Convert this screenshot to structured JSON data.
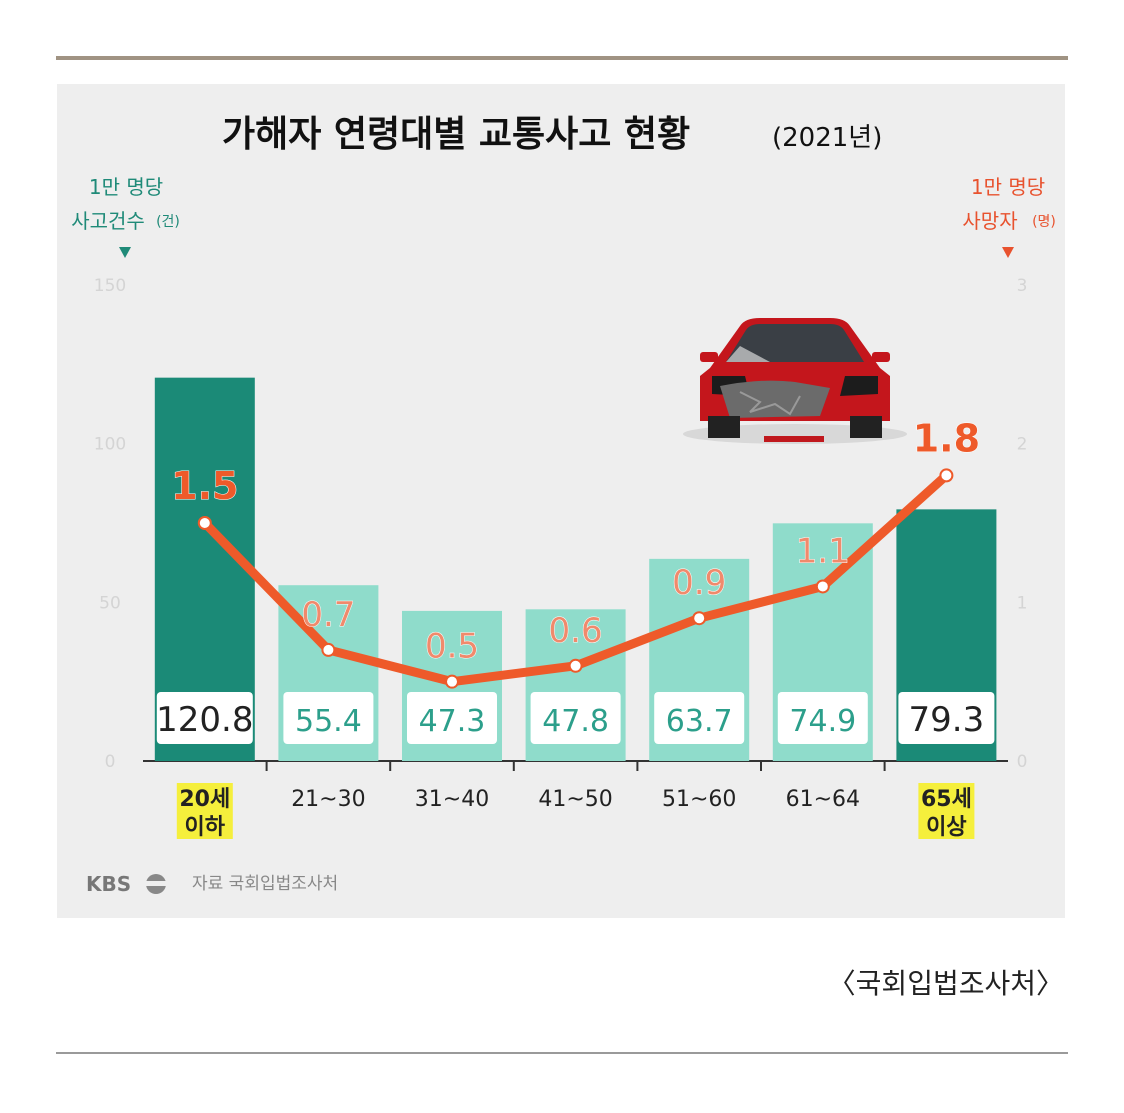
{
  "chart_data": {
    "type": "bar+line",
    "title": "가해자 연령대별 교통사고 현황",
    "title_year": "(2021년)",
    "left_axis": {
      "label_line1": "1만 명당",
      "label_line2": "사고건수",
      "label_unit": "(건)",
      "ticks": [
        0,
        50,
        100,
        150
      ],
      "range": [
        0,
        150
      ],
      "color": "#1f8a78"
    },
    "right_axis": {
      "label_line1": "1만 명당",
      "label_line2": "사망자",
      "label_unit": "(명)",
      "ticks": [
        0,
        1,
        2,
        3
      ],
      "range": [
        0,
        3
      ],
      "color": "#e8522e"
    },
    "categories": [
      {
        "line1": "20세",
        "line2": "이하",
        "highlight": true
      },
      {
        "line1": "21~30",
        "line2": "",
        "highlight": false
      },
      {
        "line1": "31~40",
        "line2": "",
        "highlight": false
      },
      {
        "line1": "41~50",
        "line2": "",
        "highlight": false
      },
      {
        "line1": "51~60",
        "line2": "",
        "highlight": false
      },
      {
        "line1": "61~64",
        "line2": "",
        "highlight": false
      },
      {
        "line1": "65세",
        "line2": "이상",
        "highlight": true
      }
    ],
    "bars": {
      "values": [
        120.8,
        55.4,
        47.3,
        47.8,
        63.7,
        74.9,
        79.3
      ],
      "labels": [
        "120.8",
        "55.4",
        "47.3",
        "47.8",
        "63.7",
        "74.9",
        "79.3"
      ]
    },
    "line": {
      "values": [
        1.5,
        0.7,
        0.5,
        0.6,
        0.9,
        1.1,
        1.8
      ],
      "labels": [
        "1.5",
        "0.7",
        "0.5",
        "0.6",
        "0.9",
        "1.1",
        "1.8"
      ]
    },
    "colors": {
      "bar_dark": "#1b8a77",
      "bar_light": "#8fdccb",
      "line": "#ee5a2a",
      "highlight": "#f5ef3c",
      "panel": "#eeeeee"
    },
    "logo": "KBS",
    "source_line": "자료 국회입법조사처",
    "grid": false
  },
  "caption": "〈국회입법조사처〉",
  "car_icon": "crashed-car-icon"
}
